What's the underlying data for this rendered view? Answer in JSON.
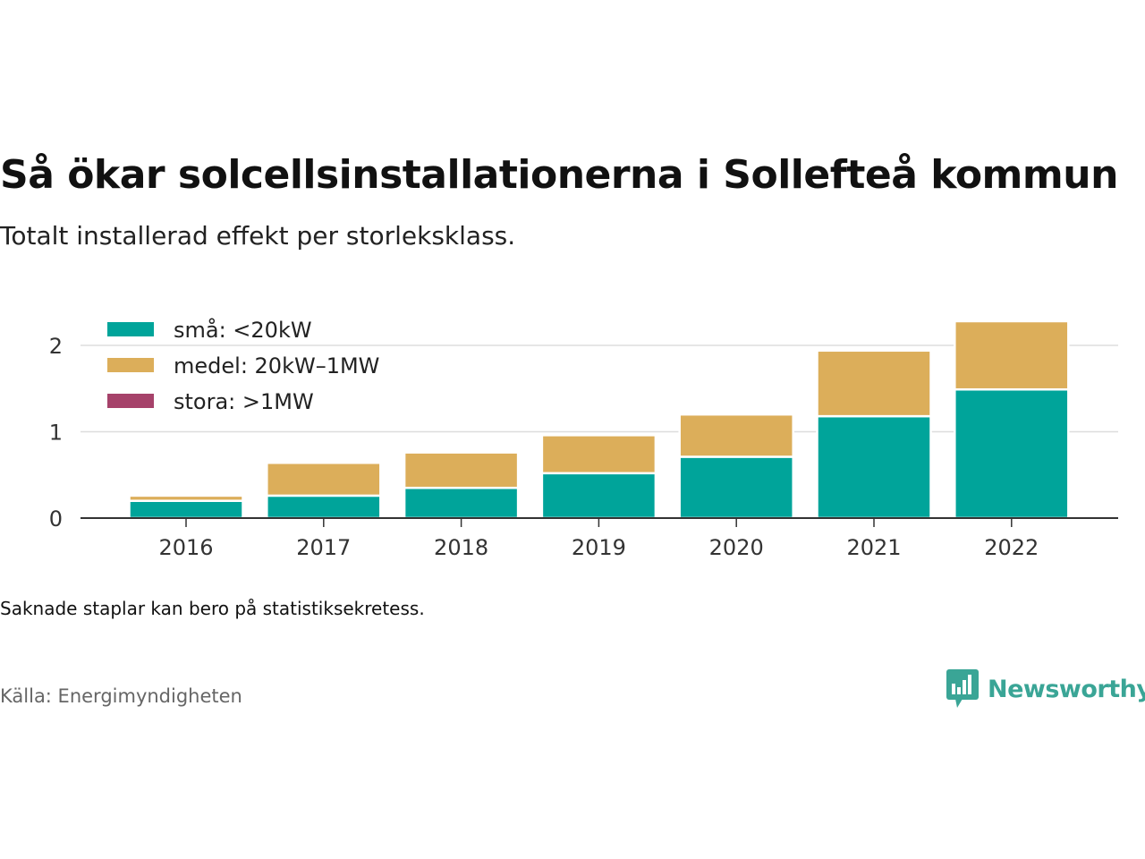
{
  "title": "Så ökar solcellsinstallationerna i Sollefteå kommun",
  "subtitle": "Totalt installerad effekt per storleksklass.",
  "note": "Saknade staplar kan bero på statistiksekretess.",
  "source": "Källa: Energimyndigheten",
  "logo": {
    "text": "Newsworthy",
    "icon": "chart-speech-bubble-icon",
    "color": "#3aa596"
  },
  "chart_data": {
    "type": "bar",
    "stacked": true,
    "categories": [
      "2016",
      "2017",
      "2018",
      "2019",
      "2020",
      "2021",
      "2022"
    ],
    "series": [
      {
        "name": "små: <20kW",
        "color": "#00a49a",
        "values": [
          0.2,
          0.26,
          0.35,
          0.52,
          0.71,
          1.18,
          1.49
        ]
      },
      {
        "name": "medel: 20kW–1MW",
        "color": "#dcae5a",
        "values": [
          0.06,
          0.38,
          0.41,
          0.44,
          0.49,
          0.76,
          0.79
        ]
      },
      {
        "name": "stora: >1MW",
        "color": "#a6426a",
        "values": [
          0,
          0,
          0,
          0,
          0,
          0,
          0
        ]
      }
    ],
    "yticks": [
      0,
      1,
      2
    ],
    "ylim": [
      0,
      2.4
    ],
    "grid": true,
    "legend": "top-left"
  }
}
